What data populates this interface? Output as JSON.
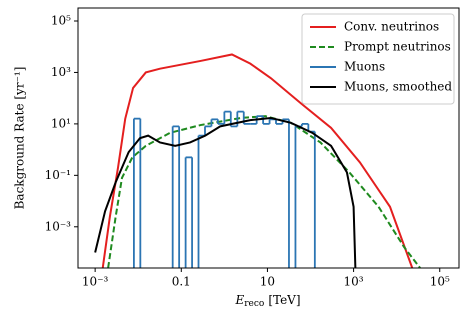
{
  "chart_data": {
    "type": "line",
    "x_label": {
      "symbol": "E",
      "subscript": "reco",
      "unit": "[TeV]"
    },
    "y_label": "Background Rate [yr⁻¹]",
    "xscale": "log",
    "yscale": "log",
    "legend": "upper right",
    "xlim": [
      0.0004,
      280000
    ],
    "ylim": [
      2.5e-05,
      320000
    ],
    "xticks": [
      {
        "value": 0.001,
        "label": "10⁻³"
      },
      0.1,
      10,
      {
        "value": 1000,
        "label": "10³"
      },
      {
        "value": 100000,
        "label": "10⁵"
      }
    ],
    "yticks": [
      {
        "value": 0.001,
        "label": "10⁻³"
      },
      {
        "value": 0.1,
        "label": "10⁻¹"
      },
      {
        "value": 10,
        "label": "10¹"
      },
      {
        "value": 1000,
        "label": "10³"
      },
      {
        "value": 100000,
        "label": "10⁵"
      }
    ],
    "series": [
      {
        "name": "Conv. neutrinos",
        "color": "#e41f1f",
        "linestyle": "solid",
        "x": [
          0.0015,
          0.0022,
          0.0034,
          0.005,
          0.0076,
          0.015,
          0.032,
          0.28,
          1.5,
          4,
          12,
          60,
          300,
          1400,
          7000,
          23000
        ],
        "values": [
          2.5e-05,
          0.0025,
          0.2,
          16,
          250,
          1000,
          1400,
          2800,
          5000,
          2200,
          600,
          63,
          7,
          0.32,
          0.006,
          2.5e-05
        ]
      },
      {
        "name": "Prompt neutrinos",
        "color": "#1f8a1f",
        "linestyle": "dashed",
        "x": [
          0.002,
          0.003,
          0.0042,
          0.0073,
          0.015,
          0.055,
          0.28,
          2.4,
          9,
          35,
          170,
          800,
          3800,
          15000,
          35000
        ],
        "values": [
          2.5e-05,
          0.0025,
          0.08,
          0.5,
          1.4,
          4.5,
          9,
          17,
          20,
          11,
          1.9,
          0.13,
          0.006,
          0.00016,
          2.5e-05
        ]
      },
      {
        "name": "Muons",
        "color": "#2b75b3",
        "kind": "histogram",
        "bins": [
          0.00794,
          0.0112,
          0.0158,
          0.0224,
          0.0316,
          0.0447,
          0.0631,
          0.0891,
          0.126,
          0.178,
          0.251,
          0.355,
          0.501,
          0.708,
          1,
          1.41,
          2,
          2.82,
          3.98,
          5.62,
          7.94,
          11.2,
          15.8,
          22.4,
          31.6,
          44.7,
          63.1,
          89.1,
          126
        ],
        "values": [
          16,
          0,
          0,
          0,
          0,
          0,
          8,
          0,
          0.5,
          0,
          3.5,
          8,
          15,
          10,
          30,
          8,
          30,
          10,
          10,
          20,
          10,
          15,
          10,
          15,
          0,
          8,
          10,
          5
        ]
      },
      {
        "name": "Muons, smoothed",
        "color": "#000000",
        "linestyle": "solid",
        "x": [
          0.001,
          0.0017,
          0.003,
          0.006,
          0.011,
          0.017,
          0.032,
          0.072,
          0.16,
          0.36,
          0.8,
          4,
          12,
          35,
          110,
          300,
          700,
          1000,
          1100
        ],
        "values": [
          0.0001,
          0.004,
          0.054,
          0.8,
          2.8,
          3.5,
          1.9,
          1.4,
          1.9,
          3.5,
          8,
          14,
          17,
          11,
          4.5,
          1.4,
          0.13,
          0.006,
          2.5e-05
        ]
      }
    ]
  }
}
